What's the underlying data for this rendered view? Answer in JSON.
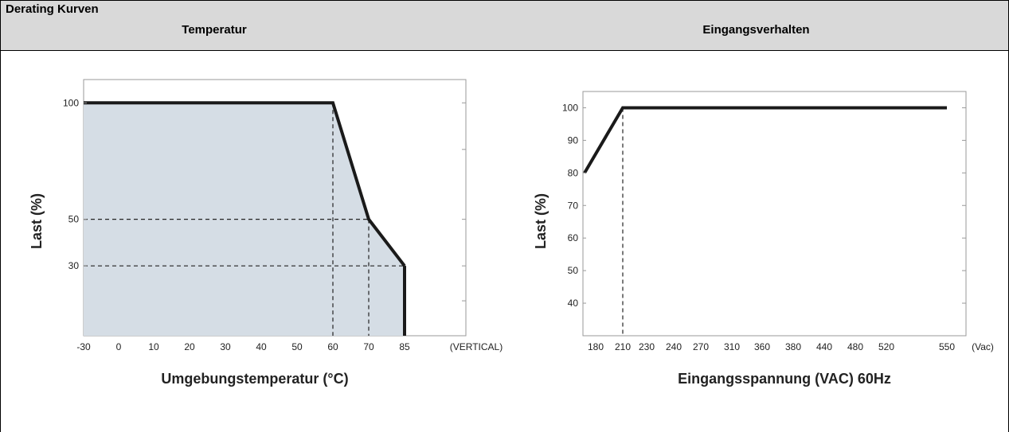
{
  "header": {
    "section_title": "Derating Kurven",
    "left_title": "Temperatur",
    "right_title": "Eingangsverhalten"
  },
  "chart_data": [
    {
      "type": "area",
      "ylabel": "Last (%)",
      "xlabel": "Umgebungstemperatur (°C)",
      "x_unit_label": "(VERTICAL)",
      "x_ticks": [
        "-30",
        "0",
        "10",
        "20",
        "30",
        "40",
        "50",
        "60",
        "70",
        "85"
      ],
      "y_ticks": [
        "100",
        "50",
        "30"
      ],
      "ylim": [
        0,
        110
      ],
      "series": [
        {
          "x": [
            "-30",
            "60",
            "70",
            "85"
          ],
          "y": [
            100,
            100,
            50,
            30
          ]
        }
      ],
      "guides": [
        {
          "x": "60",
          "y": 100
        },
        {
          "x": "70",
          "y": 50
        },
        {
          "x": "85",
          "y": 30
        }
      ],
      "fill_color": "#d5dde5",
      "line_color": "#1a1a1a"
    },
    {
      "type": "line",
      "ylabel": "Last (%)",
      "xlabel": "Eingangsspannung (VAC) 60Hz",
      "x_unit_label": "(Vac)",
      "x_ticks": [
        "180",
        "210",
        "230",
        "240",
        "270",
        "310",
        "360",
        "380",
        "440",
        "480",
        "520",
        "550"
      ],
      "y_ticks": [
        "100",
        "90",
        "80",
        "70",
        "60",
        "50",
        "40"
      ],
      "ylim": [
        30,
        105
      ],
      "series": [
        {
          "x": [
            "190",
            "210",
            "550"
          ],
          "y": [
            80,
            100,
            100
          ]
        }
      ],
      "guides": [
        {
          "x": "210",
          "y": 100
        }
      ],
      "line_color": "#1a1a1a"
    }
  ]
}
